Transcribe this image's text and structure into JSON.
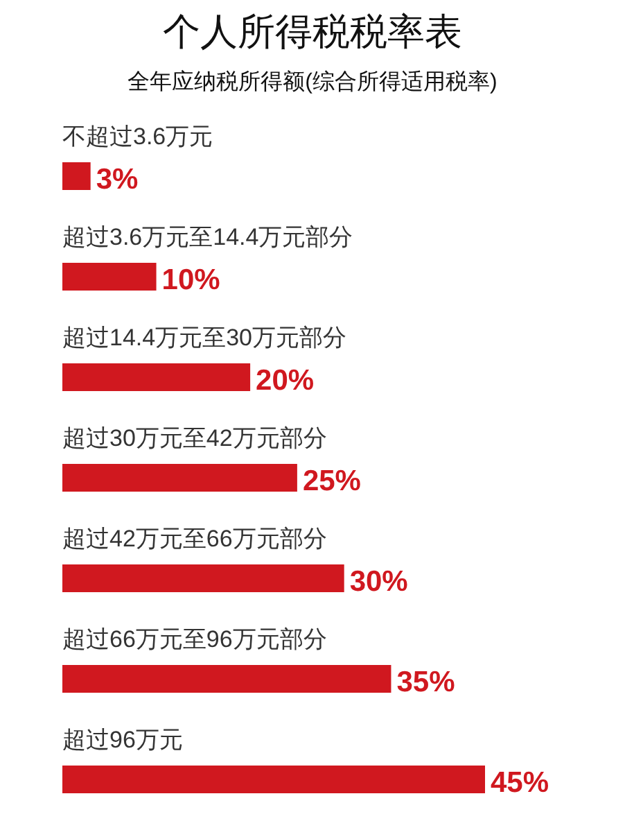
{
  "chart_data": {
    "type": "bar",
    "orientation": "horizontal",
    "title": "个人所得税税率表",
    "subtitle": "全年应纳税所得额(综合所得适用税率)",
    "categories": [
      "不超过3.6万元",
      "超过3.6万元至14.4万元部分",
      "超过14.4万元至30万元部分",
      "超过30万元至42万元部分",
      "超过42万元至66万元部分",
      "超过66万元至96万元部分",
      "超过96万元"
    ],
    "values": [
      3,
      10,
      20,
      25,
      30,
      35,
      45
    ],
    "value_labels": [
      "3%",
      "10%",
      "20%",
      "25%",
      "30%",
      "35%",
      "45%"
    ],
    "color": "#d0181f"
  }
}
